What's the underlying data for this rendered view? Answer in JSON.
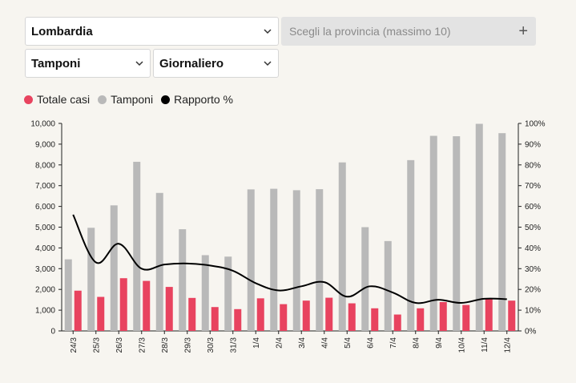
{
  "controls": {
    "region": "Lombardia",
    "metric": "Tamponi",
    "frequency": "Giornaliero",
    "province_placeholder": "Scegli la provincia (massimo 10)",
    "add_symbol": "+"
  },
  "colors": {
    "cases": "#e8435f",
    "tests": "#b9b9b9",
    "ratio": "#000000",
    "background": "#f7f5f0"
  },
  "chart_data": {
    "type": "bar",
    "legend": [
      {
        "name": "Totale casi",
        "color": "#e8435f"
      },
      {
        "name": "Tamponi",
        "color": "#b9b9b9"
      },
      {
        "name": "Rapporto %",
        "color": "#000000"
      }
    ],
    "legend_position": "top-left",
    "categories": [
      "24/3",
      "25/3",
      "26/3",
      "27/3",
      "28/3",
      "29/3",
      "30/3",
      "31/3",
      "1/4",
      "2/4",
      "3/4",
      "4/4",
      "5/4",
      "6/4",
      "7/4",
      "8/4",
      "9/4",
      "10/4",
      "11/4",
      "12/4"
    ],
    "series": [
      {
        "name": "Tamponi",
        "axis": "left",
        "color": "#b9b9b9",
        "values": [
          3450,
          4970,
          6050,
          8150,
          6650,
          4900,
          3650,
          3580,
          6820,
          6850,
          6780,
          6830,
          8120,
          5000,
          4330,
          8230,
          9400,
          9380,
          9980,
          9530
        ]
      },
      {
        "name": "Totale casi",
        "axis": "left",
        "color": "#e8435f",
        "values": [
          1940,
          1640,
          2540,
          2410,
          2120,
          1590,
          1150,
          1050,
          1570,
          1290,
          1460,
          1600,
          1330,
          1090,
          790,
          1090,
          1390,
          1250,
          1550,
          1460
        ]
      },
      {
        "name": "Rapporto %",
        "axis": "right",
        "type": "line",
        "color": "#000000",
        "values": [
          56,
          33,
          42,
          30,
          32,
          32.5,
          31.5,
          29,
          23,
          19.5,
          21.5,
          23.5,
          16.5,
          21.5,
          18.5,
          13.5,
          15,
          13.5,
          15.5,
          15.3
        ]
      }
    ],
    "yaxis_left": {
      "min": 0,
      "max": 10000,
      "ticks": [
        "0",
        "1,000",
        "2,000",
        "3,000",
        "4,000",
        "5,000",
        "6,000",
        "7,000",
        "8,000",
        "9,000",
        "10,000"
      ]
    },
    "yaxis_right": {
      "min": 0,
      "max": 100,
      "ticks": [
        "0%",
        "10%",
        "20%",
        "30%",
        "40%",
        "50%",
        "60%",
        "70%",
        "80%",
        "90%",
        "100%"
      ]
    },
    "grid": false
  }
}
